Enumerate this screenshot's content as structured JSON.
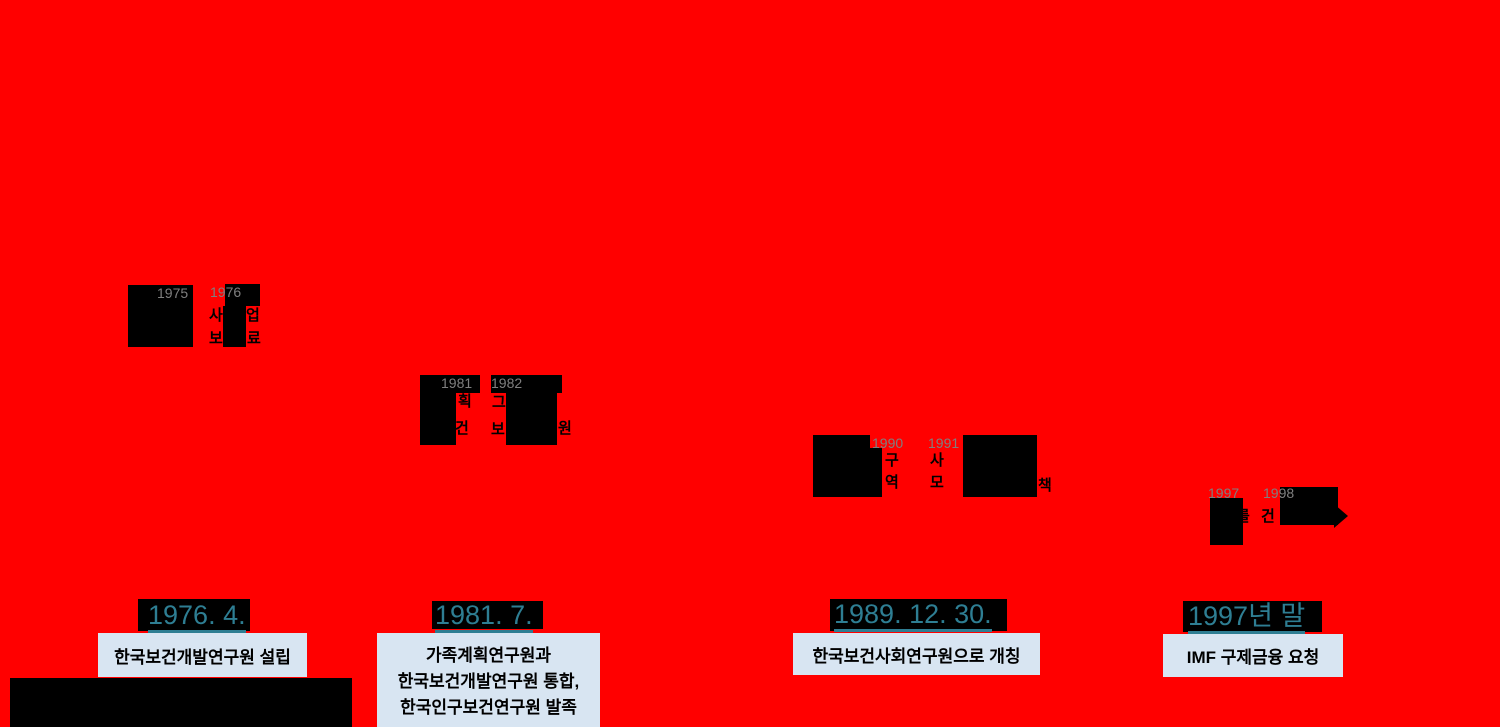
{
  "colors": {
    "background": "#FF0000",
    "redaction_box": "#000000",
    "year_label_text": "#7F7F7F",
    "caption_fragment_text": "#000000",
    "milestone_date_text": "#2E7E93",
    "milestone_date_highlight": "#000000",
    "label_box_fill": "#D8E5F2",
    "label_box_text": "#000000"
  },
  "timeline": {
    "g1": {
      "year_a": "1975",
      "year_b": "1976",
      "frag_1": "사",
      "frag_2": "업",
      "frag_3": "보",
      "frag_4": "료"
    },
    "g2": {
      "year_a": "1981",
      "year_b": "1982",
      "frag_1": "획",
      "frag_2": "건",
      "frag_3": "그",
      "frag_4": "보",
      "frag_5": "원"
    },
    "g3": {
      "year_a": "1990",
      "year_b": "1991",
      "frag_1": "구",
      "frag_2": "역",
      "frag_3": "사",
      "frag_4": "모",
      "frag_5": "책"
    },
    "g4": {
      "year_a": "1997",
      "year_b": "1998",
      "frag_1": "를",
      "frag_2": "건"
    }
  },
  "milestones": {
    "m1": {
      "date": "1976. 4.",
      "line_1": "한국보건개발연구원 설립"
    },
    "m2": {
      "date": "1981. 7.",
      "line_1": "가족계획연구원과",
      "line_2": "한국보건개발연구원 통합,",
      "line_3": "한국인구보건연구원 발족"
    },
    "m3": {
      "date": "1989. 12. 30.",
      "line_1": "한국보건사회연구원으로 개칭"
    },
    "m4": {
      "date": "1997년 말",
      "line_1": "IMF 구제금융 요청"
    }
  }
}
